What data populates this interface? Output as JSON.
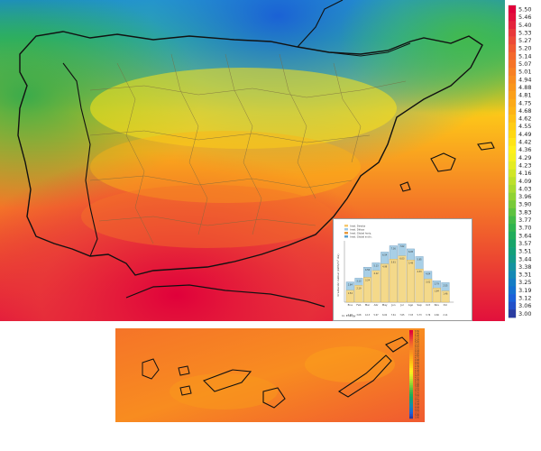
{
  "legend": {
    "values": [
      "5.50",
      "5.46",
      "5.40",
      "5.33",
      "5.27",
      "5.20",
      "5.14",
      "5.07",
      "5.01",
      "4.94",
      "4.88",
      "4.81",
      "4.75",
      "4.68",
      "4.62",
      "4.55",
      "4.49",
      "4.42",
      "4.36",
      "4.29",
      "4.23",
      "4.16",
      "4.09",
      "4.03",
      "3.96",
      "3.90",
      "3.83",
      "3.77",
      "3.70",
      "3.64",
      "3.57",
      "3.51",
      "3.44",
      "3.38",
      "3.31",
      "3.25",
      "3.19",
      "3.12",
      "3.06",
      "3.00"
    ],
    "colors": [
      "#e0003a",
      "#e2103c",
      "#e4243c",
      "#e8383a",
      "#ec4a36",
      "#f05a30",
      "#f3682c",
      "#f57428",
      "#f78024",
      "#f88c20",
      "#f9961c",
      "#fba01a",
      "#fcaa18",
      "#fdb416",
      "#fec014",
      "#ffcc14",
      "#ffd814",
      "#ffe418",
      "#fff01c",
      "#f4f020",
      "#e4ec24",
      "#d0e628",
      "#bce02c",
      "#a8da30",
      "#90d234",
      "#78ca3a",
      "#5ec240",
      "#44ba48",
      "#30b450",
      "#22ac5c",
      "#18a46a",
      "#14a07a",
      "#149a8a",
      "#1492a0",
      "#1488b4",
      "#147cc4",
      "#1470d0",
      "#1a60d8",
      "#2250c8",
      "#2a3ca0"
    ]
  },
  "inset_chart": {
    "legend_items": [
      "Irrad. Directa",
      "Irrad. Difusa",
      "Irrad. Global horiz.",
      "Irrad. Global inclin."
    ],
    "ylabel": "Irradiación Global (kWh/m² día)",
    "months": [
      "Ene",
      "Feb",
      "Mar",
      "Abr",
      "May",
      "Jun",
      "Jul",
      "Ago",
      "Sep",
      "Oct",
      "Nov",
      "Dic"
    ],
    "top_values": [
      "2.64",
      "3.13",
      "4.56",
      "5.13",
      "6.54",
      "7.36",
      "7.62",
      "6.95",
      "5.95",
      "4.04",
      "2.79",
      "2.55"
    ],
    "bottom_values": [
      "1.54",
      "2.19",
      "3.24",
      "4.12",
      "4.99",
      "5.61",
      "6.03",
      "5.49",
      "4.33",
      "3.01",
      "1.84",
      "1.46"
    ],
    "row_label": "Irr. Energy",
    "row_values": [
      "2.48",
      "3.08",
      "4.13",
      "5.07",
      "6.02",
      "7.61",
      "7.65",
      "7.03",
      "5.73",
      "3.76",
      "2.66",
      "2.11"
    ]
  },
  "canary_legend": {
    "values": [
      "5.50",
      "5.46",
      "5.40",
      "5.33",
      "5.27",
      "5.20",
      "5.14",
      "5.07",
      "5.01",
      "4.94",
      "4.88",
      "4.81",
      "4.75",
      "4.68",
      "4.62",
      "4.55",
      "4.49",
      "4.42",
      "4.36",
      "4.29",
      "4.23",
      "4.16",
      "4.09",
      "4.03",
      "3.96",
      "3.90",
      "3.83",
      "3.77",
      "3.70",
      "3.64",
      "3.57",
      "3.51",
      "3.44",
      "3.38",
      "3.31",
      "3.25",
      "3.19",
      "3.12",
      "3.06",
      "3.00"
    ]
  }
}
